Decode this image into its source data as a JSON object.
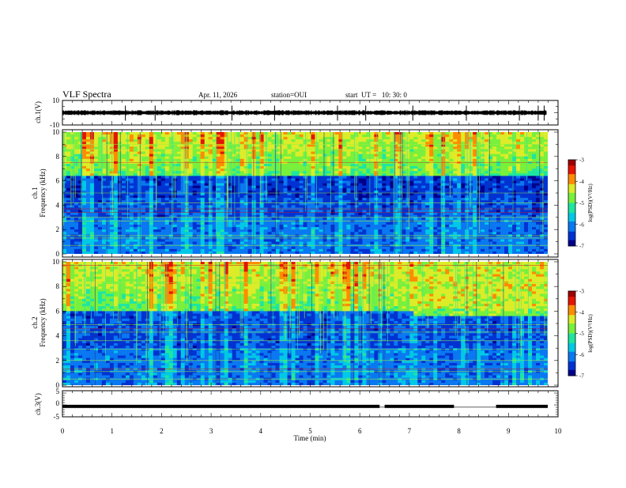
{
  "header": {
    "title": "VLF Spectra",
    "date": "Apr. 11, 2026",
    "station": "station=OUI",
    "start_ut": "start  UT =   10: 30: 0"
  },
  "colors": {
    "frame": "#000000",
    "colormap": [
      "#00008c",
      "#0032d2",
      "#0a78f0",
      "#00c8e6",
      "#1ee6a0",
      "#78f03c",
      "#dcec28",
      "#ff8c00",
      "#e61400",
      "#a00000"
    ]
  },
  "chart_data": [
    {
      "type": "line",
      "name": "ch1-waveform",
      "ylabel": "ch.1(V)",
      "ylim": [
        -10,
        10
      ],
      "y_ticks": [
        "10",
        "-10"
      ],
      "xlim": [
        0,
        10
      ],
      "baseline": 0,
      "spikes_min": [
        1.27,
        1.87,
        3.42,
        4.28,
        5.55,
        6.12,
        7.07,
        8.15,
        9.22,
        9.6,
        9.72
      ]
    },
    {
      "type": "heatmap",
      "name": "ch1-spectrogram",
      "ylabel_line1": "ch.1",
      "ylabel_line2": "Frequency (kHz)",
      "xlim": [
        0,
        10
      ],
      "ylim": [
        0,
        10
      ],
      "y_ticks": [
        "0",
        "2",
        "4",
        "6",
        "8",
        "10"
      ],
      "colorbar": {
        "label": "log(PSD)(V²/Hz)",
        "range": [
          -7,
          -3
        ],
        "ticks": [
          "-3",
          "-4",
          "-5",
          "-6",
          "-7"
        ]
      },
      "upper_band_top_khz": 10,
      "upper_band_bottom_khz": 6.4,
      "dark_band_khz": [
        4.6,
        6.4
      ],
      "red_lines_khz": [
        3.4,
        3.7,
        7.5
      ],
      "green_lines_khz": [
        0.7,
        1.3,
        1.5,
        2.7,
        3.0,
        4.2,
        5.0,
        8.6,
        9.0
      ]
    },
    {
      "type": "heatmap",
      "name": "ch2-spectrogram",
      "ylabel_line1": "ch.2",
      "ylabel_line2": "Frequency (kHz)",
      "xlim": [
        0,
        10
      ],
      "ylim": [
        0,
        10
      ],
      "y_ticks": [
        "0",
        "2",
        "4",
        "6",
        "8",
        "10"
      ],
      "colorbar": {
        "label": "log(PSD)(V²/Hz)",
        "range": [
          -7,
          -3
        ],
        "ticks": [
          "-3",
          "-4",
          "-5",
          "-6",
          "-7"
        ]
      },
      "upper_band_top_khz": 10,
      "upper_band_bottom_khz": 6.0,
      "late_band_start_min": 7.2,
      "late_band_khz": [
        5.6,
        6.2
      ],
      "red_lines_khz": [
        4.6,
        1.3,
        9.7
      ],
      "green_lines_khz": [
        0.5,
        1.1,
        2.0,
        2.9,
        3.6,
        4.3,
        4.9,
        8.3
      ]
    },
    {
      "type": "line",
      "name": "ch3-trace",
      "ylabel": "ch.3(V)",
      "ylim": [
        -5,
        5
      ],
      "y_ticks": [
        "5",
        "0",
        "-5"
      ],
      "xlim": [
        0,
        10
      ],
      "level_v": -0.6,
      "gaps_min": [
        [
          6.4,
          6.5
        ],
        [
          7.9,
          8.75
        ]
      ]
    },
    {
      "type": "axis",
      "name": "time-axis",
      "xlabel": "Time (min)",
      "x_ticks": [
        "0",
        "1",
        "2",
        "3",
        "4",
        "5",
        "6",
        "7",
        "8",
        "9",
        "10"
      ]
    }
  ]
}
